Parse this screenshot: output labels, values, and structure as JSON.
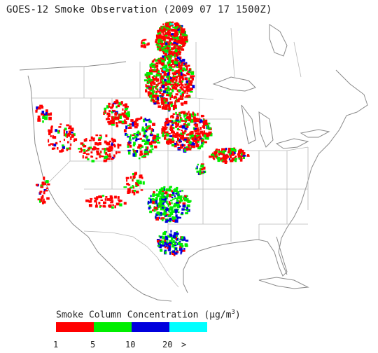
{
  "title": "GOES-12 Smoke Observation (2009 07 17  1500Z)",
  "legend": {
    "label_prefix": "Smoke Column Concentration (",
    "unit_mu": "μ",
    "unit_rest": "g/m",
    "unit_sup": "3",
    "label_suffix": ")",
    "colors": [
      "#ff0000",
      "#00ee00",
      "#0000dd",
      "#00ffff"
    ],
    "ticks": [
      "1",
      "5",
      "10",
      "20",
      ">"
    ]
  },
  "map": {
    "region": "North America (continental U.S.)",
    "boundary_color": "#b0b0b0",
    "coast_color": "#8a8a8a",
    "smoke_regions": [
      {
        "area": "North-central Canada to upper Great Plains",
        "dominant_class": "1-5"
      },
      {
        "area": "Northern Rockies",
        "dominant_class": "1-5"
      },
      {
        "area": "Southern Plains (Oklahoma / Texas)",
        "dominant_class": "5-10"
      },
      {
        "area": "South Texas",
        "dominant_class": "10-20"
      }
    ]
  }
}
